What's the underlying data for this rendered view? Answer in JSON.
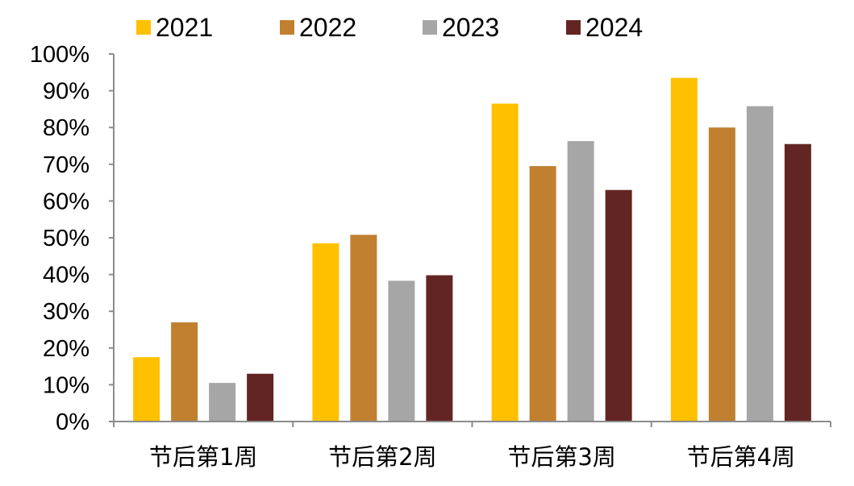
{
  "chart_data": {
    "type": "bar",
    "title": "",
    "xlabel": "",
    "ylabel": "",
    "categories": [
      "节后第1周",
      "节后第2周",
      "节后第3周",
      "节后第4周"
    ],
    "series": [
      {
        "name": "2021",
        "color": "#FFC000",
        "values": [
          17.5,
          48.5,
          86.5,
          93.5
        ]
      },
      {
        "name": "2022",
        "color": "#C08030",
        "values": [
          27,
          50.8,
          69.5,
          80
        ]
      },
      {
        "name": "2023",
        "color": "#A6A6A6",
        "values": [
          10.5,
          38.3,
          76.3,
          85.8
        ]
      },
      {
        "name": "2024",
        "color": "#632523",
        "values": [
          13,
          39.8,
          63,
          75.5
        ]
      }
    ],
    "ylim": [
      0,
      100
    ],
    "yticks": [
      0,
      10,
      20,
      30,
      40,
      50,
      60,
      70,
      80,
      90,
      100
    ],
    "ytick_labels": [
      "0%",
      "10%",
      "20%",
      "30%",
      "40%",
      "50%",
      "60%",
      "70%",
      "80%",
      "90%",
      "100%"
    ],
    "legend_position": "top",
    "grid": false
  }
}
